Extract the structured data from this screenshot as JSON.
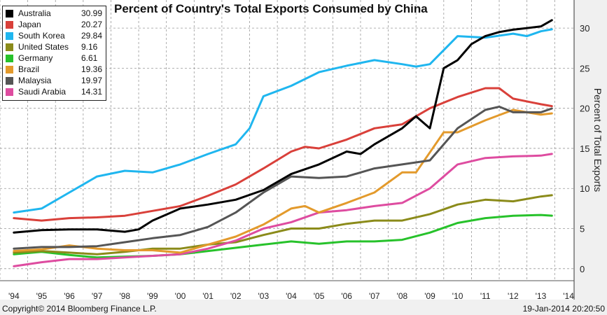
{
  "chart_data": {
    "type": "line",
    "title": "Percent of Country's Total Exports Consumed by China",
    "ylabel": "Percent of Total Exports",
    "xlabel": "",
    "xlim": [
      1993.5,
      2014.2
    ],
    "ylim": [
      -1.5,
      33.5
    ],
    "yticks": [
      0,
      5,
      10,
      15,
      20,
      25,
      30
    ],
    "xtick_labels": [
      "'94",
      "'95",
      "'96",
      "'97",
      "'98",
      "'99",
      "'00",
      "'01",
      "'02",
      "'03",
      "'04",
      "'05",
      "'06",
      "'07",
      "'08",
      "'09",
      "'10",
      "'11",
      "'12",
      "'13",
      "'14"
    ],
    "grid": true,
    "legend_position": "top-left",
    "series": [
      {
        "name": "Australia",
        "last_value": "30.99",
        "color": "#000000",
        "x": [
          1994.0,
          1995,
          1996,
          1997,
          1998,
          1998.5,
          1999,
          2000,
          2001,
          2002,
          2003,
          2004,
          2005,
          2006,
          2006.5,
          2007,
          2008,
          2008.5,
          2009,
          2009.5,
          2010,
          2010.5,
          2011,
          2011.5,
          2012,
          2012.5,
          2013,
          2013.4
        ],
        "y": [
          4.5,
          4.8,
          4.9,
          4.9,
          4.6,
          4.9,
          6.0,
          7.5,
          8.0,
          8.6,
          9.8,
          11.8,
          13.0,
          14.6,
          14.3,
          15.5,
          17.5,
          19.0,
          17.5,
          25.0,
          26.0,
          28.0,
          29.0,
          29.5,
          29.8,
          30.0,
          30.2,
          30.99
        ]
      },
      {
        "name": "Japan",
        "last_value": "20.27",
        "color": "#d9403a",
        "x": [
          1994.0,
          1995,
          1996,
          1997,
          1998,
          1999,
          2000,
          2001,
          2002,
          2003,
          2004,
          2004.5,
          2005,
          2006,
          2007,
          2008,
          2009,
          2010,
          2011,
          2011.5,
          2012,
          2013,
          2013.4
        ],
        "y": [
          6.3,
          6.0,
          6.3,
          6.4,
          6.6,
          7.2,
          7.8,
          9.1,
          10.5,
          12.5,
          14.6,
          15.2,
          15.0,
          16.1,
          17.5,
          18.0,
          20.0,
          21.4,
          22.5,
          22.5,
          21.2,
          20.5,
          20.27
        ]
      },
      {
        "name": "South Korea",
        "last_value": "29.84",
        "color": "#1fb6ef",
        "x": [
          1994.0,
          1995,
          1996,
          1997,
          1998,
          1999,
          2000,
          2001,
          2002,
          2002.5,
          2003,
          2004,
          2005,
          2006,
          2007,
          2008,
          2008.5,
          2009,
          2010,
          2011,
          2012,
          2012.5,
          2013,
          2013.4
        ],
        "y": [
          7.0,
          7.5,
          9.5,
          11.5,
          12.2,
          12.0,
          13.0,
          14.3,
          15.5,
          17.5,
          21.5,
          22.8,
          24.5,
          25.3,
          26.0,
          25.5,
          25.2,
          25.5,
          29.0,
          28.8,
          29.3,
          29.0,
          29.6,
          29.84
        ]
      },
      {
        "name": "United States",
        "last_value": "9.16",
        "color": "#8b8b1a",
        "x": [
          1994.0,
          1995,
          1996,
          1997,
          1998,
          1999,
          2000,
          2001,
          2002,
          2003,
          2004,
          2005,
          2006,
          2007,
          2008,
          2009,
          2010,
          2011,
          2012,
          2013,
          2013.4
        ],
        "y": [
          2.0,
          2.2,
          2.0,
          1.8,
          2.1,
          2.5,
          2.5,
          3.0,
          3.3,
          4.2,
          5.0,
          5.0,
          5.6,
          6.0,
          6.0,
          6.8,
          8.0,
          8.6,
          8.4,
          9.0,
          9.16
        ]
      },
      {
        "name": "Germany",
        "last_value": "6.61",
        "color": "#27c22b",
        "x": [
          1994.0,
          1995,
          1996,
          1997,
          1998,
          1999,
          2000,
          2001,
          2002,
          2003,
          2004,
          2005,
          2006,
          2007,
          2008,
          2009,
          2010,
          2011,
          2012,
          2013,
          2013.4
        ],
        "y": [
          1.8,
          2.1,
          1.7,
          1.4,
          1.5,
          1.6,
          1.8,
          2.2,
          2.6,
          3.0,
          3.4,
          3.1,
          3.4,
          3.4,
          3.6,
          4.5,
          5.7,
          6.3,
          6.6,
          6.7,
          6.61
        ]
      },
      {
        "name": "Brazil",
        "last_value": "19.36",
        "color": "#e39a2c",
        "x": [
          1994.0,
          1995,
          1996,
          1997,
          1998,
          1999,
          2000,
          2001,
          2002,
          2003,
          2004,
          2004.5,
          2005,
          2006,
          2007,
          2008,
          2008.5,
          2009,
          2009.5,
          2010,
          2011,
          2012,
          2013,
          2013.4
        ],
        "y": [
          2.2,
          2.4,
          2.9,
          2.5,
          2.3,
          2.3,
          2.0,
          3.0,
          4.0,
          5.5,
          7.5,
          7.8,
          7.0,
          8.2,
          9.5,
          12.0,
          12.0,
          14.5,
          17.0,
          17.0,
          18.5,
          19.8,
          19.2,
          19.36
        ]
      },
      {
        "name": "Malaysia",
        "last_value": "19.97",
        "color": "#555555",
        "x": [
          1994.0,
          1995,
          1996,
          1997,
          1998,
          1999,
          2000,
          2001,
          2002,
          2003,
          2004,
          2005,
          2006,
          2007,
          2008,
          2009,
          2010,
          2011,
          2011.5,
          2012,
          2013,
          2013.4
        ],
        "y": [
          2.5,
          2.7,
          2.7,
          2.8,
          3.3,
          3.8,
          4.2,
          5.2,
          7.0,
          9.5,
          11.5,
          11.3,
          11.5,
          12.5,
          13.0,
          13.5,
          17.5,
          19.8,
          20.2,
          19.5,
          19.5,
          19.97
        ]
      },
      {
        "name": "Saudi Arabia",
        "last_value": "14.31",
        "color": "#de4ca0",
        "x": [
          1994.0,
          1995,
          1996,
          1997,
          1998,
          1999,
          2000,
          2001,
          2002,
          2003,
          2004,
          2005,
          2006,
          2007,
          2008,
          2009,
          2010,
          2011,
          2012,
          2013,
          2013.4
        ],
        "y": [
          0.3,
          0.8,
          1.2,
          1.2,
          1.4,
          1.6,
          1.8,
          2.5,
          3.5,
          5.0,
          5.8,
          7.0,
          7.3,
          7.8,
          8.2,
          10.0,
          13.0,
          13.8,
          14.0,
          14.1,
          14.31
        ]
      }
    ]
  },
  "footer": {
    "copyright": "Copyright© 2014 Bloomberg Finance L.P.",
    "timestamp": "19-Jan-2014 20:20:50"
  }
}
